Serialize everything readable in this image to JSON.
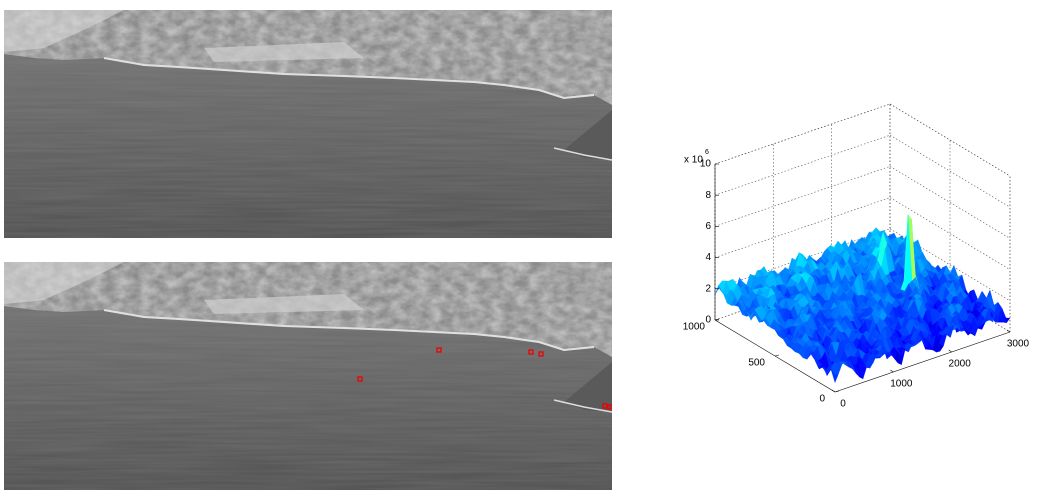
{
  "figure": {
    "plot": {
      "type": "surface",
      "z_multiplier": {
        "base": "x 10",
        "exponent": "6"
      },
      "xlim": [
        0,
        3000
      ],
      "ylim": [
        0,
        1000
      ],
      "zlim": [
        0,
        10
      ],
      "xticks": [
        0,
        1000,
        2000,
        3000
      ],
      "yticks": [
        0,
        500,
        1000
      ],
      "zticks": [
        0,
        2,
        4,
        6,
        8,
        10
      ],
      "grid": true
    }
  }
}
